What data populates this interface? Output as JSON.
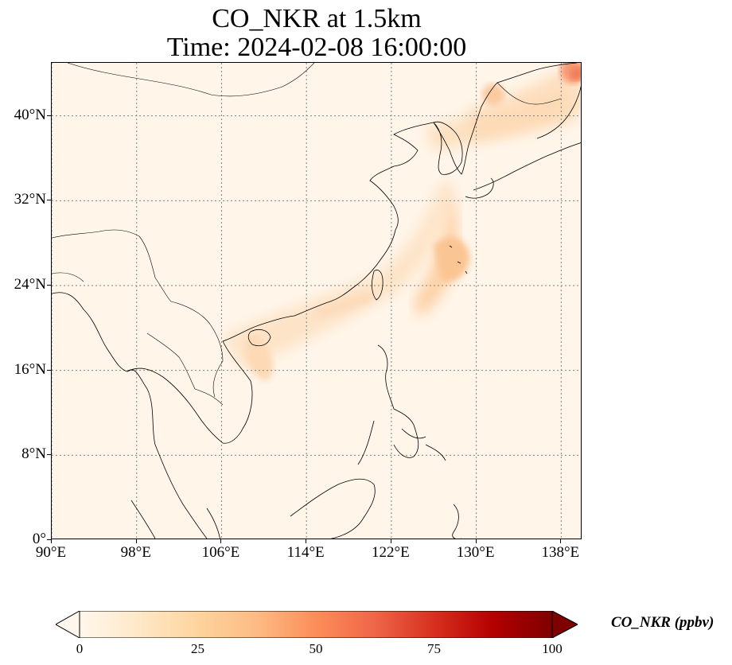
{
  "figure": {
    "title_line1": "CO_NKR at 1.5km",
    "title_line2": "Time: 2024-02-08 16:00:00"
  },
  "map": {
    "projection": "PlateCarree",
    "lon_range": [
      90,
      140
    ],
    "lat_range": [
      0,
      45
    ],
    "gridlines": "dotted gray",
    "lat_ticks": [
      {
        "value": 0,
        "label": "0°"
      },
      {
        "value": 8,
        "label": "8°N"
      },
      {
        "value": 16,
        "label": "16°N"
      },
      {
        "value": 24,
        "label": "24°N"
      },
      {
        "value": 32,
        "label": "32°N"
      },
      {
        "value": 40,
        "label": "40°N"
      }
    ],
    "lon_ticks": [
      {
        "value": 90,
        "label": "90°E"
      },
      {
        "value": 98,
        "label": "98°E"
      },
      {
        "value": 106,
        "label": "106°E"
      },
      {
        "value": 114,
        "label": "114°E"
      },
      {
        "value": 122,
        "label": "122°E"
      },
      {
        "value": 130,
        "label": "130°E"
      },
      {
        "value": 138,
        "label": "138°E"
      }
    ]
  },
  "colorbar": {
    "label": "CO_NKR (ppbv)",
    "colormap": "OrRd",
    "range": [
      0,
      100
    ],
    "extend": "both",
    "ticks": [
      {
        "value": 0,
        "label": "0"
      },
      {
        "value": 25,
        "label": "25"
      },
      {
        "value": 50,
        "label": "50"
      },
      {
        "value": 75,
        "label": "75"
      },
      {
        "value": 100,
        "label": "100"
      }
    ],
    "colors": [
      "#fff7ec",
      "#fee8c8",
      "#fdd49e",
      "#fdbb84",
      "#fc8d59",
      "#ef6548",
      "#d7301f",
      "#b30000",
      "#7f0000"
    ]
  }
}
